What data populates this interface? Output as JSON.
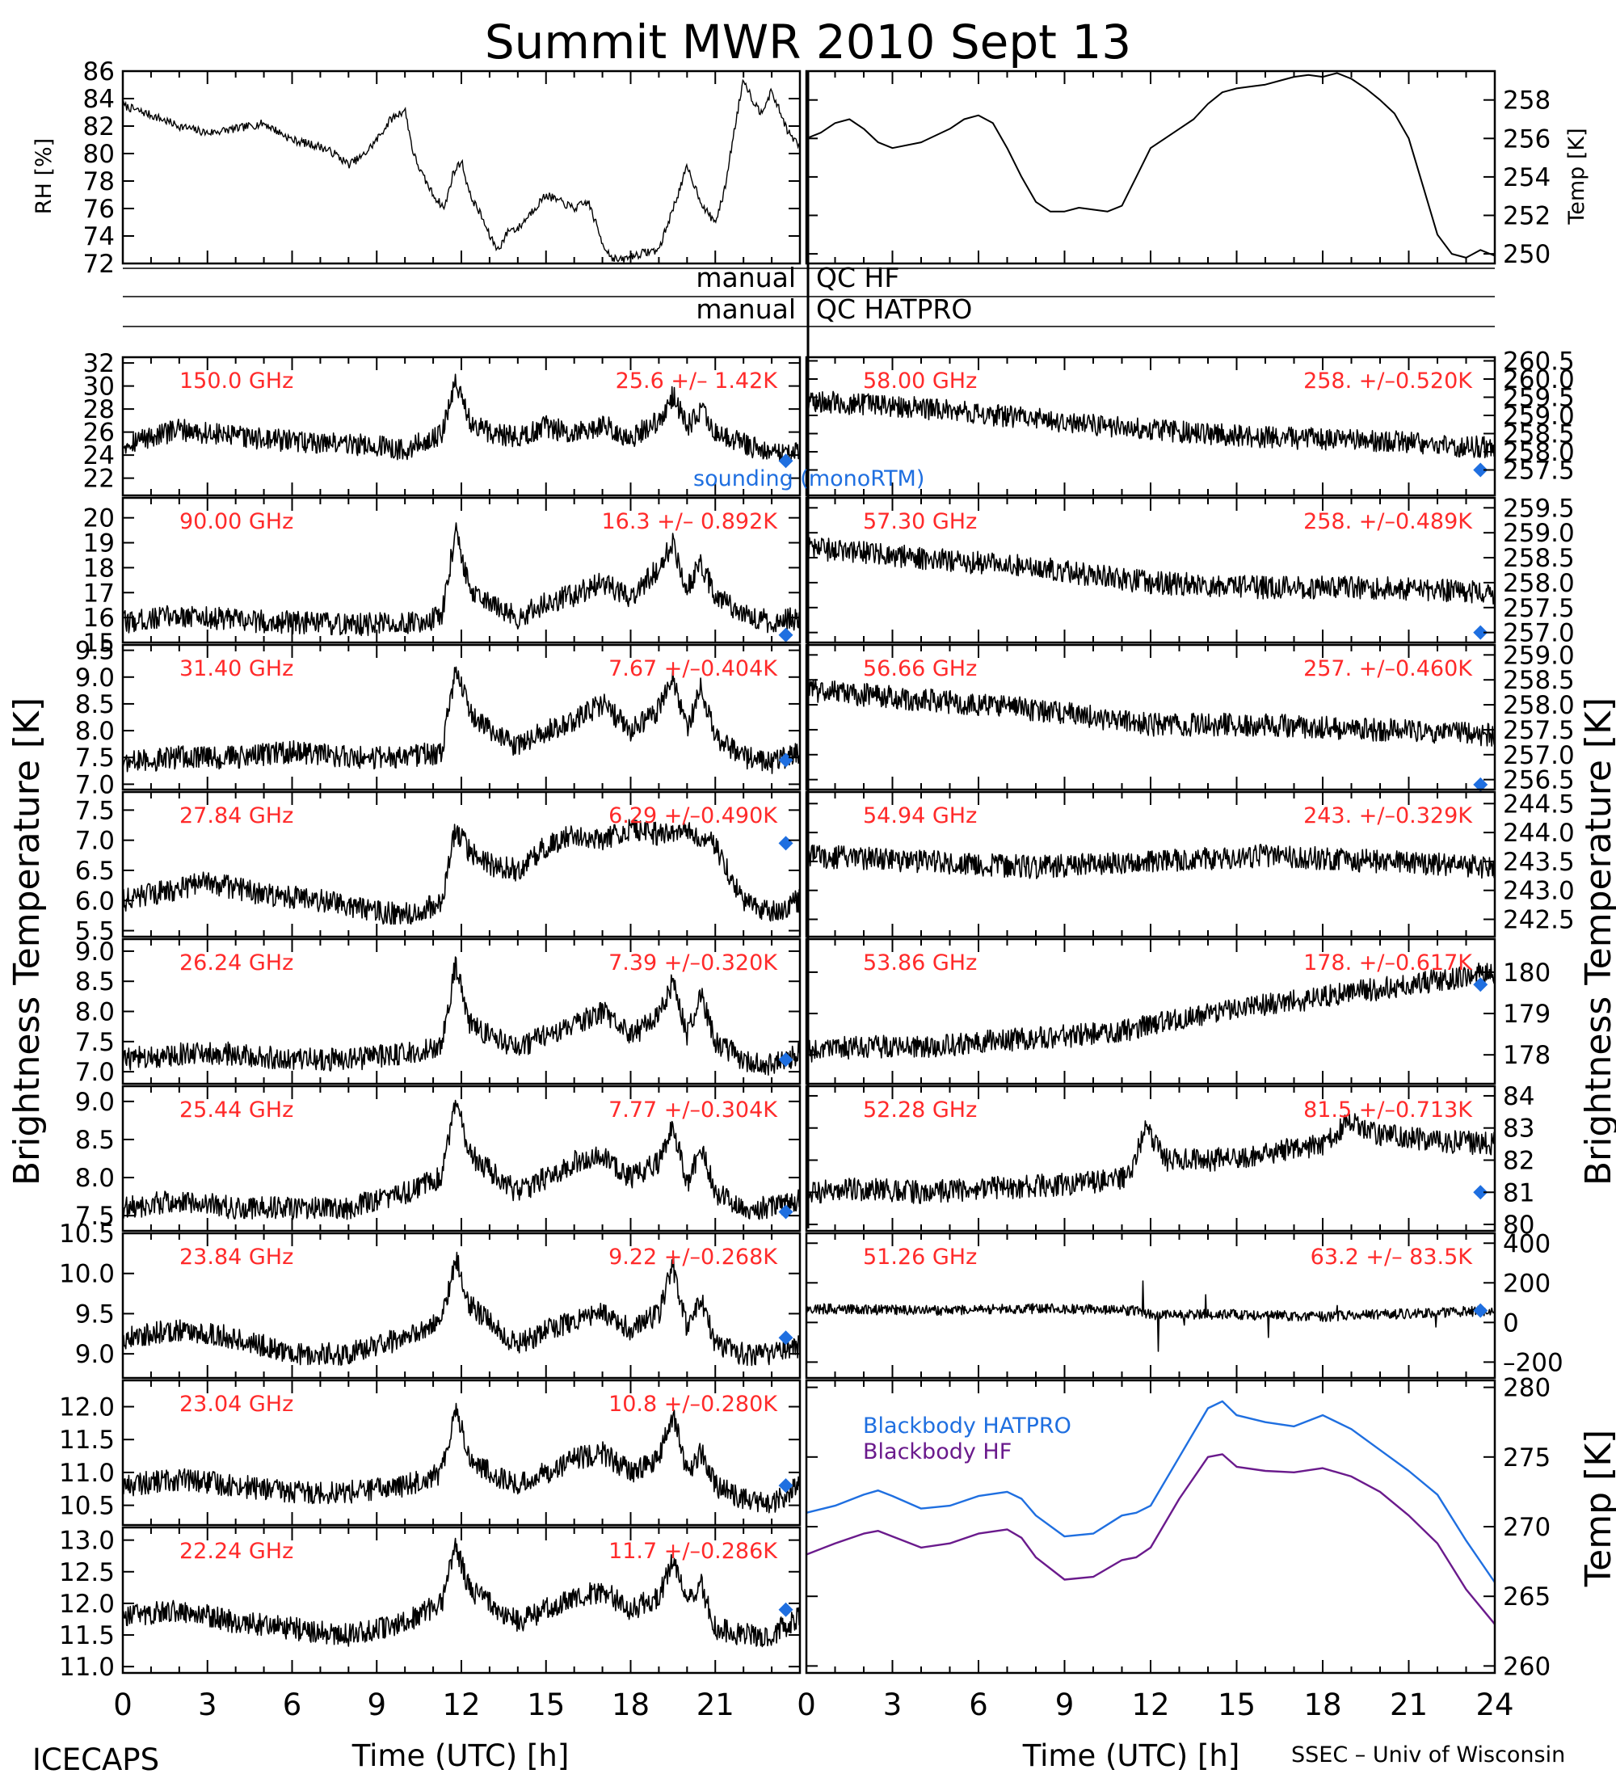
{
  "title": "Summit MWR 2010 Sept 13",
  "footer": {
    "left": "ICECAPS",
    "right": "SSEC – Univ of Wisconsin"
  },
  "qc": {
    "label1_left": "manual",
    "label1_right": "QC HF",
    "label2_left": "manual",
    "label2_right": "QC HATPRO"
  },
  "labels": {
    "rh": "RH [%]",
    "temp_top": "Temp [K]",
    "bt_left": "Brightness Temperature [K]",
    "bt_right": "Brightness Temperature [K]",
    "temp_bottom": "Temp [K]",
    "xlabel": "Time (UTC) [h]",
    "sounding": "sounding (monoRTM)",
    "bb_hatpro": "Blackbody HATPRO",
    "bb_hf": "Blackbody HF"
  },
  "x_ticks": [
    "0",
    "3",
    "6",
    "9",
    "12",
    "15",
    "18",
    "21",
    "24"
  ],
  "x_ticks_left": [
    "0",
    "3",
    "6",
    "9",
    "12",
    "15",
    "18",
    "21"
  ],
  "colors": {
    "red": "#ff2a2a",
    "blue": "#1f6fe0",
    "purple": "#6a1a8c",
    "black": "#000000"
  },
  "chart_data": [
    {
      "type": "line",
      "id": "rh",
      "ylabel": "RH [%]",
      "xlim": [
        0,
        24
      ],
      "ylim": [
        72,
        86
      ],
      "yticks": [
        "86",
        "84",
        "82",
        "80",
        "78",
        "76",
        "74",
        "72"
      ],
      "x": [
        0,
        1,
        2,
        3,
        4,
        5,
        6,
        7,
        7.5,
        8,
        8.5,
        9,
        9.5,
        10,
        10.3,
        10.6,
        11,
        11.4,
        11.7,
        12,
        12.3,
        12.7,
        13,
        13.3,
        13.7,
        14,
        14.5,
        15,
        15.5,
        16,
        16.5,
        17,
        17.3,
        17.6,
        18,
        18.5,
        19,
        19.5,
        20,
        20.3,
        20.6,
        21,
        21.3,
        21.7,
        22,
        22.3,
        22.6,
        23,
        23.3,
        23.6,
        24
      ],
      "values": [
        83.5,
        82.8,
        82.0,
        81.5,
        81.8,
        82.2,
        81.0,
        80.5,
        80.0,
        79.2,
        79.8,
        81.0,
        82.5,
        83.2,
        80.0,
        78.5,
        77.0,
        76.0,
        78.5,
        79.5,
        77.0,
        75.5,
        74.0,
        73.0,
        74.5,
        74.5,
        75.8,
        77.0,
        76.5,
        76.0,
        76.5,
        73.5,
        72.5,
        72.2,
        72.5,
        72.8,
        73.0,
        76.0,
        79.0,
        77.5,
        76.0,
        75.0,
        77.0,
        82.0,
        85.5,
        84.0,
        83.0,
        84.5,
        83.0,
        81.5,
        80.5
      ]
    },
    {
      "type": "line",
      "id": "temp",
      "ylabel": "Temp [K]",
      "xlim": [
        0,
        24
      ],
      "ylim": [
        249.5,
        259.5
      ],
      "yticks": [
        "258",
        "256",
        "254",
        "252",
        "250"
      ],
      "x": [
        0,
        0.5,
        1,
        1.5,
        2,
        2.5,
        3,
        4,
        5,
        5.5,
        6,
        6.5,
        7,
        7.5,
        8,
        8.5,
        9,
        9.5,
        10,
        10.5,
        11,
        11.5,
        12,
        12.5,
        13,
        13.5,
        14,
        14.5,
        15,
        15.5,
        16,
        16.5,
        17,
        17.5,
        18,
        18.5,
        19,
        19.5,
        20,
        20.5,
        21,
        21.5,
        22,
        22.5,
        23,
        23.5,
        24
      ],
      "values": [
        256.0,
        256.3,
        256.8,
        257.0,
        256.5,
        255.8,
        255.5,
        255.8,
        256.5,
        257.0,
        257.2,
        256.8,
        255.5,
        254.0,
        252.7,
        252.2,
        252.2,
        252.4,
        252.3,
        252.2,
        252.5,
        254.0,
        255.5,
        256.0,
        256.5,
        257.0,
        257.8,
        258.4,
        258.6,
        258.7,
        258.8,
        259.0,
        259.2,
        259.3,
        259.2,
        259.4,
        259.1,
        258.6,
        258.0,
        257.3,
        256.0,
        253.5,
        251.0,
        250.0,
        249.8,
        250.2,
        249.9
      ]
    },
    {
      "type": "line",
      "id": "c150",
      "freq": "150.0 GHz",
      "stat": "25.6 +/– 1.42K",
      "ylim": [
        20.5,
        32.5
      ],
      "yticks": [
        "32",
        "30",
        "28",
        "26",
        "24",
        "22"
      ],
      "x": [
        0,
        2,
        4,
        6,
        8,
        10,
        11.3,
        11.8,
        12.3,
        13,
        14,
        15,
        16,
        17,
        18,
        19,
        19.5,
        20,
        20.5,
        21,
        22,
        23,
        24
      ],
      "values": [
        25.0,
        26.2,
        25.6,
        25.2,
        25.0,
        24.5,
        25.8,
        30.5,
        27.0,
        26.0,
        25.5,
        26.5,
        25.8,
        26.6,
        25.5,
        27.0,
        29.2,
        26.5,
        27.8,
        26.0,
        25.0,
        24.0,
        24.5
      ],
      "sounding": [
        23.5,
        23.5
      ]
    },
    {
      "type": "line",
      "id": "c90",
      "freq": "90.00 GHz",
      "stat": "16.3 +/– 0.892K",
      "ylim": [
        15,
        20.8
      ],
      "yticks": [
        "20",
        "19",
        "18",
        "17",
        "16",
        "15"
      ],
      "x": [
        0,
        2,
        4,
        6,
        8,
        10,
        11.3,
        11.8,
        12.3,
        13,
        14,
        15,
        16,
        17,
        18,
        19,
        19.5,
        20,
        20.5,
        21,
        22,
        23,
        24
      ],
      "values": [
        15.8,
        16.1,
        15.9,
        15.8,
        15.7,
        15.8,
        16.0,
        19.5,
        17.0,
        16.5,
        16.0,
        16.6,
        16.9,
        17.4,
        16.8,
        18.0,
        19.0,
        17.2,
        18.2,
        16.8,
        16.2,
        15.8,
        16.0
      ],
      "sounding": [
        23.5,
        15.3
      ]
    },
    {
      "type": "line",
      "id": "c3140",
      "freq": "31.40 GHz",
      "stat": "7.67 +/–0.404K",
      "ylim": [
        6.9,
        9.6
      ],
      "yticks": [
        "9.5",
        "9.0",
        "8.5",
        "8.0",
        "7.5",
        "7.0"
      ],
      "x": [
        0,
        2,
        4,
        6,
        8,
        10,
        11.3,
        11.8,
        12.3,
        13,
        14,
        15,
        16,
        17,
        18,
        19,
        19.5,
        20,
        20.5,
        21,
        22,
        23,
        24
      ],
      "values": [
        7.4,
        7.5,
        7.5,
        7.6,
        7.5,
        7.5,
        7.6,
        9.2,
        8.3,
        8.0,
        7.7,
        8.0,
        8.2,
        8.5,
        8.0,
        8.4,
        9.0,
        8.0,
        8.8,
        7.9,
        7.5,
        7.4,
        7.6
      ],
      "sounding": [
        23.5,
        7.45
      ]
    },
    {
      "type": "line",
      "id": "c2784",
      "freq": "27.84 GHz",
      "stat": "6.29 +/–0.490K",
      "ylim": [
        5.4,
        7.8
      ],
      "yticks": [
        "7.5",
        "7.0",
        "6.5",
        "6.0",
        "5.5"
      ],
      "x": [
        0,
        2,
        3,
        5,
        7,
        9,
        10.5,
        11.3,
        11.8,
        12.3,
        13,
        14,
        15,
        16,
        17,
        18,
        19,
        20,
        21,
        22,
        23,
        24
      ],
      "values": [
        6.0,
        6.2,
        6.3,
        6.1,
        6.0,
        5.8,
        5.8,
        6.0,
        7.2,
        6.8,
        6.6,
        6.5,
        6.9,
        7.1,
        7.0,
        7.2,
        7.1,
        7.2,
        6.9,
        6.0,
        5.8,
        6.0
      ],
      "sounding": [
        23.5,
        6.95
      ]
    },
    {
      "type": "line",
      "id": "c2624",
      "freq": "26.24 GHz",
      "stat": "7.39 +/–0.320K",
      "ylim": [
        6.8,
        9.2
      ],
      "yticks": [
        "9.0",
        "8.5",
        "8.0",
        "7.5",
        "7.0"
      ],
      "x": [
        0,
        2,
        4,
        6,
        8,
        10,
        11.3,
        11.8,
        12.3,
        13,
        14,
        15,
        16,
        17,
        18,
        19,
        19.5,
        20,
        20.5,
        21,
        22,
        23,
        24
      ],
      "values": [
        7.2,
        7.3,
        7.3,
        7.2,
        7.2,
        7.3,
        7.4,
        8.8,
        7.8,
        7.6,
        7.4,
        7.6,
        7.8,
        8.0,
        7.6,
        7.9,
        8.5,
        7.6,
        8.3,
        7.5,
        7.2,
        7.1,
        7.3
      ],
      "sounding": [
        23.5,
        7.2
      ]
    },
    {
      "type": "line",
      "id": "c2544",
      "freq": "25.44 GHz",
      "stat": "7.77 +/–0.304K",
      "ylim": [
        7.3,
        9.2
      ],
      "yticks": [
        "9.0",
        "8.5",
        "8.0",
        "7.5"
      ],
      "x": [
        0,
        2,
        4,
        6,
        8,
        10,
        11.3,
        11.8,
        12.3,
        13,
        14,
        15,
        16,
        17,
        18,
        19,
        19.5,
        20,
        20.5,
        21,
        22,
        23,
        24
      ],
      "values": [
        7.6,
        7.7,
        7.6,
        7.6,
        7.6,
        7.8,
        8.0,
        9.0,
        8.3,
        8.1,
        7.8,
        8.0,
        8.2,
        8.3,
        8.0,
        8.2,
        8.7,
        7.9,
        8.4,
        7.8,
        7.6,
        7.6,
        7.7
      ],
      "sounding": [
        23.5,
        7.55
      ]
    },
    {
      "type": "line",
      "id": "c2384",
      "freq": "23.84 GHz",
      "stat": "9.22 +/–0.268K",
      "ylim": [
        8.7,
        10.5
      ],
      "yticks": [
        "10.5",
        "10.0",
        "9.5",
        "9.0"
      ],
      "x": [
        0,
        2,
        4,
        6,
        8,
        10,
        11.3,
        11.8,
        12.3,
        13,
        14,
        15,
        16,
        17,
        18,
        19,
        19.5,
        20,
        20.5,
        21,
        22,
        23,
        24
      ],
      "values": [
        9.2,
        9.3,
        9.2,
        9.0,
        9.0,
        9.2,
        9.4,
        10.2,
        9.6,
        9.4,
        9.1,
        9.3,
        9.4,
        9.5,
        9.3,
        9.5,
        10.1,
        9.3,
        9.7,
        9.1,
        9.0,
        9.0,
        9.1
      ],
      "sounding": [
        23.5,
        9.2
      ]
    },
    {
      "type": "line",
      "id": "c2304",
      "freq": "23.04 GHz",
      "stat": "10.8 +/–0.280K",
      "ylim": [
        10.2,
        12.4
      ],
      "yticks": [
        "12.0",
        "11.5",
        "11.0",
        "10.5"
      ],
      "x": [
        0,
        2,
        4,
        6,
        8,
        10,
        11.3,
        11.8,
        12.3,
        13,
        14,
        15,
        16,
        17,
        18,
        19,
        19.5,
        20,
        20.5,
        21,
        22,
        23,
        24
      ],
      "values": [
        10.8,
        10.9,
        10.8,
        10.7,
        10.7,
        10.8,
        11.0,
        12.0,
        11.2,
        11.0,
        10.8,
        11.0,
        11.2,
        11.3,
        11.0,
        11.2,
        11.9,
        11.0,
        11.3,
        10.8,
        10.6,
        10.5,
        10.8
      ],
      "sounding": [
        23.5,
        10.8
      ]
    },
    {
      "type": "line",
      "id": "c2224",
      "freq": "22.24 GHz",
      "stat": "11.7 +/–0.286K",
      "ylim": [
        10.9,
        13.2
      ],
      "yticks": [
        "13.0",
        "12.5",
        "12.0",
        "11.5",
        "11.0"
      ],
      "x": [
        0,
        2,
        4,
        6,
        8,
        10,
        11.3,
        11.8,
        12.3,
        13,
        14,
        15,
        16,
        17,
        18,
        19,
        19.5,
        20,
        20.5,
        21,
        22,
        23,
        24
      ],
      "values": [
        11.8,
        11.9,
        11.7,
        11.6,
        11.5,
        11.7,
        12.0,
        12.9,
        12.2,
        12.0,
        11.7,
        11.9,
        12.1,
        12.2,
        11.9,
        12.1,
        12.7,
        12.0,
        12.3,
        11.6,
        11.5,
        11.5,
        11.8
      ],
      "sounding": [
        23.5,
        11.9
      ]
    },
    {
      "type": "line",
      "id": "c5800",
      "freq": "58.00 GHz",
      "stat": "258. +/–0.520K",
      "ylim": [
        256.8,
        260.6
      ],
      "yticks": [
        "260.5",
        "260.0",
        "259.5",
        "259.0",
        "258.5",
        "258.0",
        "257.5"
      ],
      "x": [
        0,
        4,
        8,
        12,
        16,
        20,
        24
      ],
      "values": [
        259.4,
        259.2,
        258.9,
        258.6,
        258.4,
        258.3,
        258.1
      ],
      "sounding": [
        23.5,
        257.5
      ]
    },
    {
      "type": "line",
      "id": "c5730",
      "freq": "57.30 GHz",
      "stat": "258. +/–0.489K",
      "ylim": [
        256.8,
        259.7
      ],
      "yticks": [
        "259.5",
        "259.0",
        "258.5",
        "258.0",
        "257.5",
        "257.0"
      ],
      "x": [
        0,
        4,
        8,
        12,
        16,
        20,
        24
      ],
      "values": [
        258.7,
        258.5,
        258.3,
        258.0,
        257.9,
        257.9,
        257.8
      ],
      "sounding": [
        23.5,
        257.0
      ]
    },
    {
      "type": "line",
      "id": "c5666",
      "freq": "56.66 GHz",
      "stat": "257. +/–0.460K",
      "ylim": [
        256.3,
        259.2
      ],
      "yticks": [
        "259.0",
        "258.5",
        "258.0",
        "257.5",
        "257.0",
        "256.5"
      ],
      "x": [
        0,
        4,
        8,
        12,
        16,
        20,
        24
      ],
      "values": [
        258.3,
        258.1,
        257.9,
        257.6,
        257.6,
        257.5,
        257.4
      ],
      "sounding": [
        23.5,
        256.4
      ]
    },
    {
      "type": "line",
      "id": "c5494",
      "freq": "54.94 GHz",
      "stat": "243. +/–0.329K",
      "ylim": [
        242.2,
        244.7
      ],
      "yticks": [
        "244.5",
        "244.0",
        "243.5",
        "243.0",
        "242.5"
      ],
      "x": [
        0,
        4,
        8,
        12,
        16,
        20,
        24
      ],
      "values": [
        243.6,
        243.5,
        243.4,
        243.5,
        243.6,
        243.5,
        243.4
      ],
      "sounding": []
    },
    {
      "type": "line",
      "id": "c5386",
      "freq": "53.86 GHz",
      "stat": "178. +/–0.617K",
      "ylim": [
        177.3,
        180.8
      ],
      "yticks": [
        "180",
        "179",
        "178"
      ],
      "x": [
        0,
        2,
        4,
        6,
        8,
        10,
        12,
        14,
        16,
        18,
        20,
        22,
        24
      ],
      "values": [
        178.1,
        178.2,
        178.2,
        178.3,
        178.4,
        178.5,
        178.7,
        179.0,
        179.2,
        179.4,
        179.6,
        179.8,
        180.0
      ],
      "sounding": [
        23.5,
        179.7
      ]
    },
    {
      "type": "line",
      "id": "c5228",
      "freq": "52.28 GHz",
      "stat": "81.5 +/–0.713K",
      "ylim": [
        79.8,
        84.3
      ],
      "yticks": [
        "84",
        "83",
        "82",
        "81",
        "80"
      ],
      "x": [
        0,
        2,
        4,
        6,
        8,
        10,
        11.3,
        11.8,
        12.5,
        14,
        16,
        18,
        19,
        20,
        22,
        24
      ],
      "values": [
        81.0,
        81.1,
        81.0,
        81.1,
        81.2,
        81.3,
        81.5,
        83.0,
        82.0,
        82.0,
        82.2,
        82.5,
        83.2,
        82.8,
        82.6,
        82.5
      ],
      "sounding": [
        23.5,
        81.0
      ]
    },
    {
      "type": "line",
      "id": "c5126",
      "freq": "51.26 GHz",
      "stat": "63.2 +/– 83.5K",
      "ylim": [
        -280,
        450
      ],
      "yticks": [
        "400",
        "200",
        "0",
        "–200"
      ],
      "x": [
        0,
        4,
        8,
        11.5,
        12,
        15,
        18,
        20,
        22,
        24
      ],
      "values": [
        70,
        60,
        70,
        60,
        40,
        40,
        30,
        40,
        50,
        60
      ],
      "sounding": [
        23.5,
        60
      ]
    },
    {
      "type": "line",
      "id": "blackbody",
      "ylabel": "Temp [K]",
      "xlim": [
        0,
        24
      ],
      "ylim": [
        259.5,
        280.5
      ],
      "yticks": [
        "280",
        "275",
        "270",
        "265",
        "260"
      ],
      "series": [
        {
          "name": "Blackbody HATPRO",
          "x": [
            0,
            1,
            2,
            2.5,
            3,
            4,
            5,
            6,
            7,
            7.5,
            8,
            9,
            10,
            11,
            11.5,
            12,
            13,
            14,
            14.5,
            15,
            16,
            17,
            18,
            19,
            20,
            21,
            22,
            23,
            24
          ],
          "values": [
            271.0,
            271.5,
            272.3,
            272.6,
            272.2,
            271.3,
            271.5,
            272.2,
            272.5,
            272.0,
            270.8,
            269.3,
            269.5,
            270.8,
            271.0,
            271.5,
            275.0,
            278.5,
            279.0,
            278.0,
            277.5,
            277.2,
            278.0,
            277.0,
            275.5,
            274.0,
            272.3,
            269.0,
            266.0
          ]
        },
        {
          "name": "Blackbody HF",
          "x": [
            0,
            1,
            2,
            2.5,
            3,
            4,
            5,
            6,
            7,
            7.5,
            8,
            9,
            10,
            11,
            11.5,
            12,
            13,
            14,
            14.5,
            15,
            16,
            17,
            18,
            19,
            20,
            21,
            22,
            23,
            24
          ],
          "values": [
            268.0,
            268.8,
            269.5,
            269.7,
            269.3,
            268.5,
            268.8,
            269.5,
            269.8,
            269.2,
            267.8,
            266.2,
            266.4,
            267.6,
            267.8,
            268.5,
            272.0,
            275.0,
            275.2,
            274.3,
            274.0,
            273.9,
            274.2,
            273.6,
            272.5,
            270.8,
            268.8,
            265.5,
            263.0
          ]
        }
      ]
    }
  ]
}
